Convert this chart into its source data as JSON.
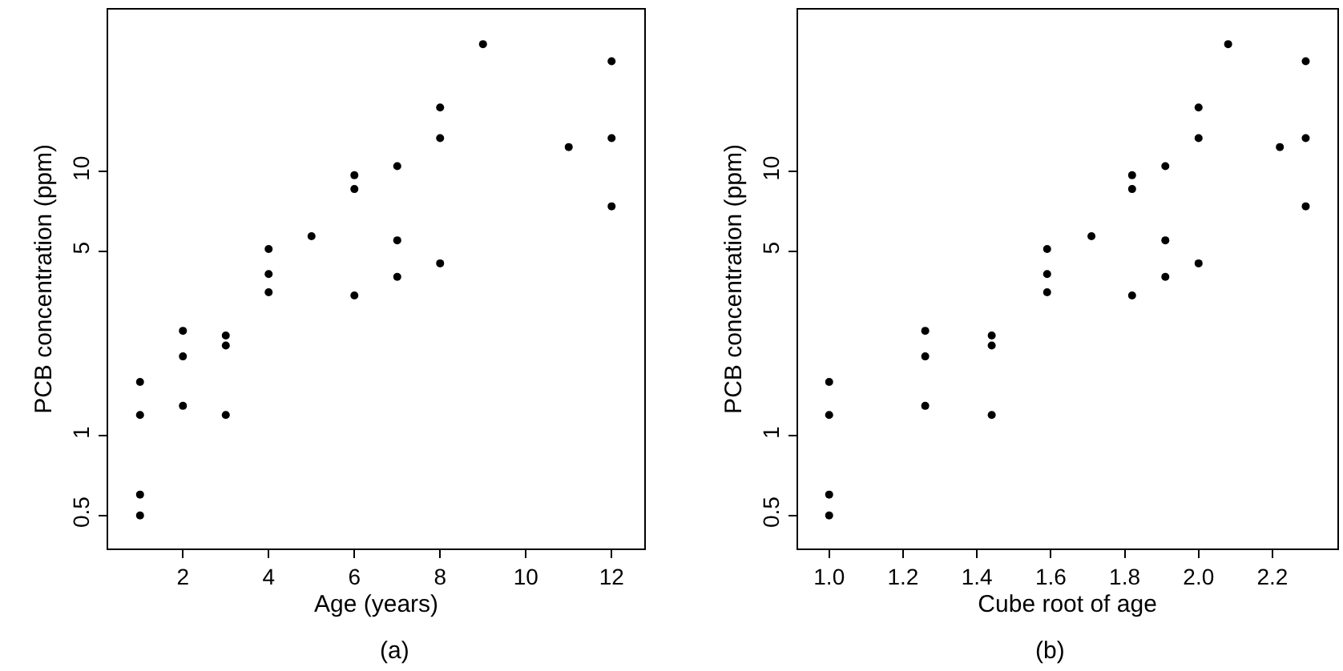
{
  "chart_data": [
    {
      "type": "scatter",
      "xlabel": "Age (years)",
      "ylabel": "PCB concentration (ppm)",
      "annotations": [
        "(a)"
      ],
      "log": "y",
      "marker": "circle",
      "xlim": [
        0.25,
        12.77
      ],
      "xticks": [
        2,
        4,
        6,
        8,
        10,
        12
      ],
      "ylim": [
        0.376,
        41
      ],
      "yticks": [
        0.5,
        1,
        5,
        10
      ],
      "series": [
        {
          "color": "#000000",
          "x": [
            1,
            1,
            1,
            1,
            2,
            2,
            2,
            3,
            3,
            3,
            4,
            4,
            4,
            5,
            6,
            6,
            6,
            7,
            7,
            7,
            8,
            8,
            8,
            9,
            11,
            12,
            12,
            12
          ],
          "values": [
            0.6,
            1.6,
            0.5,
            1.2,
            2.0,
            1.3,
            2.5,
            2.2,
            2.4,
            1.2,
            3.5,
            4.1,
            5.1,
            5.7,
            3.4,
            9.7,
            8.6,
            4.0,
            5.5,
            10.5,
            17.5,
            13.4,
            4.5,
            30.4,
            12.4,
            13.4,
            26.2,
            7.4
          ]
        }
      ]
    },
    {
      "type": "scatter",
      "xlabel": "Cube root of age",
      "ylabel": "PCB concentration (ppm)",
      "annotations": [
        "(b)"
      ],
      "log": "y",
      "marker": "circle",
      "xlim": [
        0.915,
        2.375
      ],
      "xticks": [
        {
          "value": 1.0,
          "label": "1.0"
        },
        1.2,
        1.4,
        1.6,
        1.8,
        {
          "value": 2.0,
          "label": "2.0"
        },
        2.2
      ],
      "ylim": [
        0.376,
        41
      ],
      "yticks": [
        0.5,
        1,
        5,
        10
      ],
      "series": [
        {
          "color": "#000000",
          "x": [
            1.0,
            1.0,
            1.0,
            1.0,
            1.26,
            1.26,
            1.26,
            1.44,
            1.44,
            1.44,
            1.59,
            1.59,
            1.59,
            1.71,
            1.82,
            1.82,
            1.82,
            1.91,
            1.91,
            1.91,
            2.0,
            2.0,
            2.0,
            2.08,
            2.22,
            2.29,
            2.29,
            2.29
          ],
          "values": [
            0.6,
            1.6,
            0.5,
            1.2,
            2.0,
            1.3,
            2.5,
            2.2,
            2.4,
            1.2,
            3.5,
            4.1,
            5.1,
            5.7,
            3.4,
            9.7,
            8.6,
            4.0,
            5.5,
            10.5,
            17.5,
            13.4,
            4.5,
            30.4,
            12.4,
            13.4,
            26.2,
            7.4
          ]
        }
      ]
    }
  ]
}
